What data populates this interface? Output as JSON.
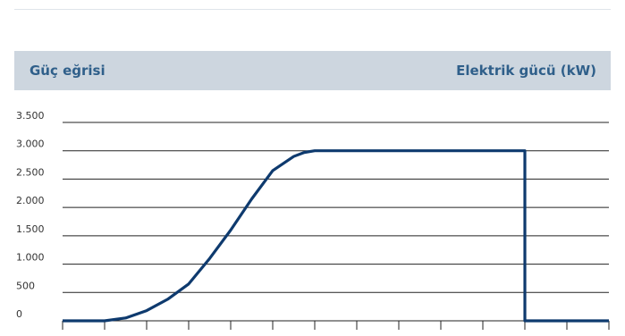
{
  "header": {
    "title": "Güç eğrisi",
    "unit_label": "Elektrik gücü (kW)"
  },
  "colors": {
    "band": "#cdd6df",
    "header_text": "#2f5f8a",
    "curve": "#0e3a6e",
    "grid": "#222222"
  },
  "chart_data": {
    "type": "line",
    "title": "Güç eğrisi",
    "ylabel": "Elektrik gücü (kW)",
    "xlabel": "",
    "ylim": [
      0,
      3500
    ],
    "xlim": [
      0,
      26
    ],
    "y_ticks": [
      {
        "value": 0,
        "label": "0"
      },
      {
        "value": 500,
        "label": "500"
      },
      {
        "value": 1000,
        "label": "1.000"
      },
      {
        "value": 1500,
        "label": "1.500"
      },
      {
        "value": 2000,
        "label": "2.000"
      },
      {
        "value": 2500,
        "label": "2.500"
      },
      {
        "value": 3000,
        "label": "3.000"
      },
      {
        "value": 3500,
        "label": "3.500"
      }
    ],
    "x_ticks": [
      0,
      2,
      4,
      6,
      8,
      10,
      12,
      14,
      16,
      18,
      20,
      22,
      24,
      26
    ],
    "grid": true,
    "legend": "none",
    "series": [
      {
        "x": [
          0,
          2,
          3,
          4,
          5,
          6,
          7,
          8,
          9,
          10,
          11,
          11.5,
          12,
          13,
          14,
          15,
          16,
          17,
          18,
          19,
          20,
          21,
          22,
          22.001,
          23,
          24,
          25,
          26
        ],
        "y": [
          0,
          0,
          50,
          180,
          380,
          650,
          1100,
          1600,
          2150,
          2650,
          2900,
          2970,
          3000,
          3000,
          3000,
          3000,
          3000,
          3000,
          3000,
          3000,
          3000,
          3000,
          3000,
          0,
          0,
          0,
          0,
          0
        ]
      }
    ]
  }
}
